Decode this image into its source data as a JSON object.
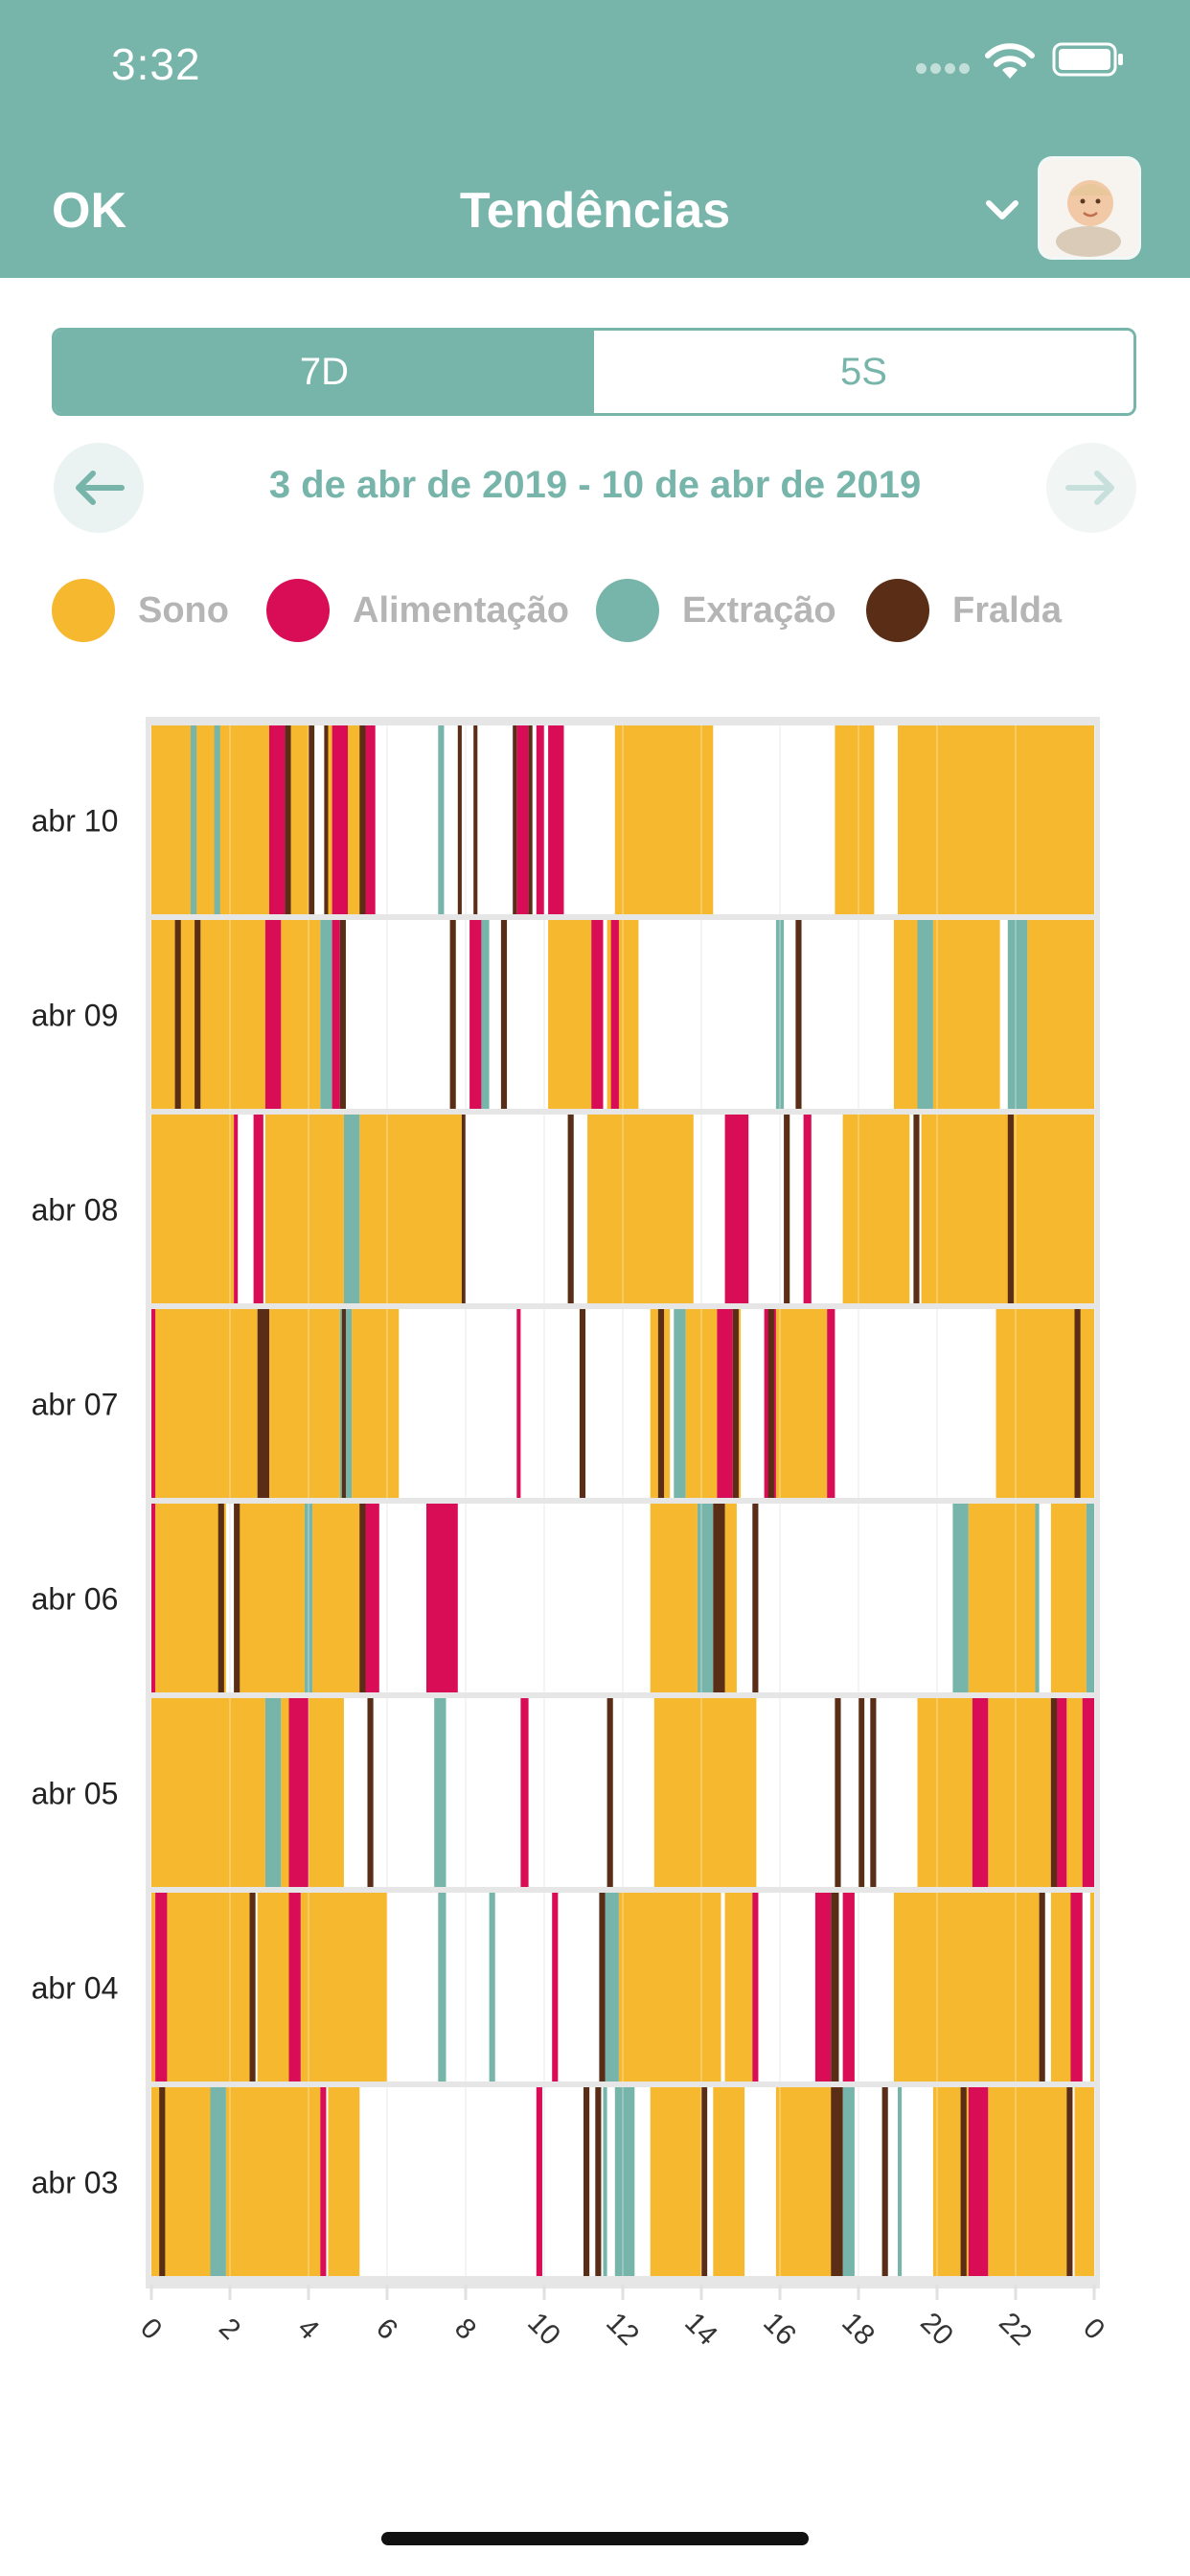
{
  "status_bar": {
    "time": "3:32"
  },
  "nav": {
    "ok_label": "OK",
    "title": "Tendências"
  },
  "segments": {
    "seven_days": "7D",
    "five_weeks": "5S",
    "selected": "7D"
  },
  "date_range": "3 de abr de 2019 - 10 de abr de 2019",
  "legend": [
    {
      "key": "sleep",
      "label": "Sono",
      "color": "#f5b82e"
    },
    {
      "key": "feeding",
      "label": "Alimentação",
      "color": "#d80d56"
    },
    {
      "key": "pumping",
      "label": "Extração",
      "color": "#77b5aa"
    },
    {
      "key": "diaper",
      "label": "Fralda",
      "color": "#5a2e16"
    }
  ],
  "chart_data": {
    "type": "timeline",
    "x_range": [
      0,
      24
    ],
    "x_ticks": [
      "0",
      "2",
      "4",
      "6",
      "8",
      "10",
      "12",
      "14",
      "16",
      "18",
      "20",
      "22",
      "0"
    ],
    "rows": [
      {
        "label": "abr 10",
        "sleep": [
          [
            0,
            3
          ],
          [
            3.4,
            4.0
          ],
          [
            4.4,
            4.6
          ],
          [
            5.0,
            5.4
          ],
          [
            11.8,
            14.3
          ],
          [
            17.4,
            18.4
          ],
          [
            19.0,
            24
          ]
        ],
        "feeding": [
          [
            3.0,
            3.4
          ],
          [
            4.6,
            5.0
          ],
          [
            5.4,
            5.7
          ],
          [
            9.3,
            9.6
          ],
          [
            9.8,
            10.0
          ],
          [
            10.1,
            10.5
          ]
        ],
        "pumping": [
          [
            1.0,
            1.15
          ],
          [
            1.6,
            1.75
          ],
          [
            7.3,
            7.45
          ]
        ],
        "diaper": [
          [
            3.4,
            3.55
          ],
          [
            4.0,
            4.15
          ],
          [
            4.4,
            4.5
          ],
          [
            5.3,
            5.45
          ],
          [
            7.8,
            7.9
          ],
          [
            8.2,
            8.3
          ],
          [
            9.2,
            9.3
          ],
          [
            9.6,
            9.7
          ]
        ]
      },
      {
        "label": "abr 09",
        "sleep": [
          [
            0,
            2.9
          ],
          [
            3.3,
            4.3
          ],
          [
            10.1,
            11.2
          ],
          [
            11.6,
            12.4
          ],
          [
            18.9,
            19.5
          ],
          [
            19.9,
            21.6
          ],
          [
            22.3,
            24
          ]
        ],
        "feeding": [
          [
            2.9,
            3.3
          ],
          [
            4.6,
            4.8
          ],
          [
            8.1,
            8.4
          ],
          [
            11.2,
            11.5
          ],
          [
            11.7,
            11.9
          ]
        ],
        "pumping": [
          [
            4.3,
            4.6
          ],
          [
            8.4,
            8.6
          ],
          [
            15.9,
            16.1
          ],
          [
            19.5,
            19.9
          ],
          [
            21.8,
            22.3
          ]
        ],
        "diaper": [
          [
            0.6,
            0.75
          ],
          [
            1.1,
            1.25
          ],
          [
            4.8,
            4.95
          ],
          [
            7.6,
            7.75
          ],
          [
            8.9,
            9.05
          ],
          [
            16.4,
            16.55
          ]
        ]
      },
      {
        "label": "abr 08",
        "sleep": [
          [
            0,
            2.1
          ],
          [
            2.9,
            4.9
          ],
          [
            5.3,
            7.9
          ],
          [
            11.1,
            13.8
          ],
          [
            17.6,
            19.3
          ],
          [
            19.6,
            24
          ]
        ],
        "feeding": [
          [
            2.1,
            2.2
          ],
          [
            2.6,
            2.85
          ],
          [
            14.6,
            15.2
          ],
          [
            16.6,
            16.8
          ]
        ],
        "pumping": [
          [
            4.9,
            5.3
          ]
        ],
        "diaper": [
          [
            7.9,
            8.0
          ],
          [
            10.6,
            10.75
          ],
          [
            16.1,
            16.25
          ],
          [
            19.4,
            19.55
          ],
          [
            21.8,
            21.95
          ]
        ]
      },
      {
        "label": "abr 07",
        "sleep": [
          [
            0,
            2.7
          ],
          [
            3.0,
            4.8
          ],
          [
            5.1,
            6.3
          ],
          [
            12.7,
            13.2
          ],
          [
            13.6,
            14.4
          ],
          [
            14.9,
            15.0
          ],
          [
            15.9,
            17.2
          ],
          [
            21.5,
            24
          ]
        ],
        "feeding": [
          [
            0,
            0.1
          ],
          [
            9.3,
            9.4
          ],
          [
            14.4,
            14.8
          ],
          [
            15.6,
            15.9
          ],
          [
            17.2,
            17.4
          ]
        ],
        "pumping": [
          [
            4.8,
            5.1
          ],
          [
            13.3,
            13.6
          ]
        ],
        "diaper": [
          [
            2.7,
            3.0
          ],
          [
            4.85,
            4.95
          ],
          [
            10.9,
            11.05
          ],
          [
            12.9,
            13.05
          ],
          [
            14.8,
            14.95
          ],
          [
            15.7,
            15.85
          ],
          [
            23.5,
            23.65
          ]
        ]
      },
      {
        "label": "abr 06",
        "sleep": [
          [
            0.1,
            1.9
          ],
          [
            2.2,
            3.9
          ],
          [
            4.1,
            5.3
          ],
          [
            12.7,
            13.9
          ],
          [
            14.6,
            14.9
          ],
          [
            20.8,
            22.5
          ],
          [
            22.9,
            23.8
          ]
        ],
        "feeding": [
          [
            0,
            0.1
          ],
          [
            5.3,
            5.8
          ],
          [
            7.0,
            7.8
          ]
        ],
        "pumping": [
          [
            3.9,
            4.1
          ],
          [
            13.9,
            14.3
          ],
          [
            20.4,
            20.8
          ],
          [
            22.5,
            22.6
          ],
          [
            23.8,
            24
          ]
        ],
        "diaper": [
          [
            1.7,
            1.85
          ],
          [
            2.1,
            2.25
          ],
          [
            5.3,
            5.45
          ],
          [
            14.3,
            14.6
          ],
          [
            15.3,
            15.45
          ]
        ]
      },
      {
        "label": "abr 05",
        "sleep": [
          [
            0,
            2.9
          ],
          [
            3.3,
            3.5
          ],
          [
            4.0,
            4.9
          ],
          [
            12.8,
            15.4
          ],
          [
            19.5,
            20.9
          ],
          [
            21.3,
            22.9
          ],
          [
            23.3,
            23.7
          ]
        ],
        "feeding": [
          [
            3.5,
            4.0
          ],
          [
            9.4,
            9.6
          ],
          [
            20.9,
            21.3
          ],
          [
            22.9,
            23.3
          ],
          [
            23.7,
            24
          ]
        ],
        "pumping": [
          [
            2.9,
            3.3
          ],
          [
            7.2,
            7.5
          ]
        ],
        "diaper": [
          [
            5.5,
            5.65
          ],
          [
            11.6,
            11.75
          ],
          [
            17.4,
            17.55
          ],
          [
            18.0,
            18.15
          ],
          [
            18.3,
            18.45
          ],
          [
            22.9,
            23.05
          ]
        ]
      },
      {
        "label": "abr 04",
        "sleep": [
          [
            0,
            0.1
          ],
          [
            0.4,
            2.5
          ],
          [
            2.7,
            3.5
          ],
          [
            3.8,
            6.0
          ],
          [
            11.9,
            14.5
          ],
          [
            14.6,
            15.3
          ],
          [
            18.9,
            22.6
          ],
          [
            22.9,
            23.7
          ],
          [
            23.9,
            24
          ]
        ],
        "feeding": [
          [
            0.1,
            0.4
          ],
          [
            3.5,
            3.8
          ],
          [
            10.2,
            10.35
          ],
          [
            15.3,
            15.45
          ],
          [
            16.9,
            17.3
          ],
          [
            17.6,
            17.9
          ],
          [
            23.4,
            23.7
          ]
        ],
        "pumping": [
          [
            7.3,
            7.5
          ],
          [
            8.6,
            8.75
          ],
          [
            11.5,
            11.9
          ]
        ],
        "diaper": [
          [
            2.5,
            2.65
          ],
          [
            11.4,
            11.55
          ],
          [
            17.3,
            17.5
          ],
          [
            22.6,
            22.75
          ]
        ]
      },
      {
        "label": "abr 03",
        "sleep": [
          [
            0,
            1.5
          ],
          [
            1.9,
            4.3
          ],
          [
            4.5,
            5.3
          ],
          [
            12.7,
            14.1
          ],
          [
            14.3,
            15.1
          ],
          [
            15.9,
            17.4
          ],
          [
            19.9,
            20.8
          ],
          [
            21.3,
            23.3
          ],
          [
            23.5,
            24
          ]
        ],
        "feeding": [
          [
            4.3,
            4.45
          ],
          [
            9.8,
            9.95
          ],
          [
            20.8,
            21.3
          ]
        ],
        "pumping": [
          [
            1.5,
            1.9
          ],
          [
            11.5,
            11.6
          ],
          [
            11.8,
            12.3
          ],
          [
            17.6,
            17.9
          ],
          [
            19.0,
            19.1
          ]
        ],
        "diaper": [
          [
            0.2,
            0.35
          ],
          [
            11.0,
            11.15
          ],
          [
            11.3,
            11.45
          ],
          [
            14.0,
            14.15
          ],
          [
            17.3,
            17.6
          ],
          [
            18.6,
            18.75
          ],
          [
            20.6,
            20.75
          ],
          [
            23.3,
            23.45
          ]
        ]
      }
    ]
  }
}
